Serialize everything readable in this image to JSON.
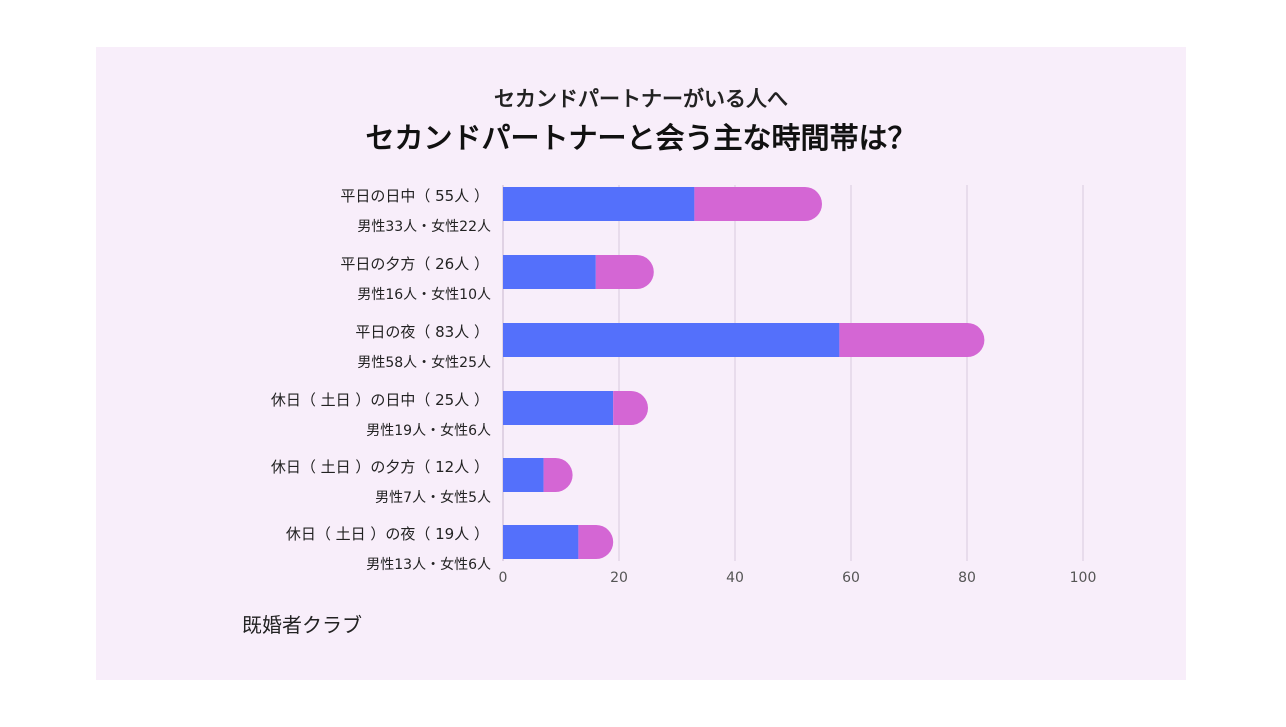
{
  "chart_data": {
    "type": "bar",
    "orientation": "horizontal",
    "stacked": true,
    "subtitle": "セカンドパートナーがいる人へ",
    "title": "セカンドパートナーと会う主な時間帯は？",
    "categories": [
      {
        "label": "平日の日中（ 55人 ）",
        "detail": "男性33人・女性22人"
      },
      {
        "label": "平日の夕方（ 26人 ）",
        "detail": "男性16人・女性10人"
      },
      {
        "label": "平日の夜（ 83人 ）",
        "detail": "男性58人・女性25人"
      },
      {
        "label": "休日（ 土日 ）の日中（ 25人 ）",
        "detail": "男性19人・女性6人"
      },
      {
        "label": "休日（ 土日 ）の夕方（ 12人 ）",
        "detail": "男性7人・女性5人"
      },
      {
        "label": "休日（ 土日 ）の夜（ 19人 ）",
        "detail": "男性13人・女性6人"
      }
    ],
    "series": [
      {
        "values": [
          33,
          16,
          58,
          19,
          7,
          13
        ],
        "color": "#5470fb"
      },
      {
        "values": [
          22,
          10,
          25,
          6,
          5,
          6
        ],
        "color": "#d466d4"
      }
    ],
    "xlim": [
      0,
      100
    ],
    "xticks": [
      "0",
      "20",
      "40",
      "60",
      "80",
      "100"
    ],
    "grid": true,
    "legend": "none"
  },
  "credit": "既婚者クラブ"
}
